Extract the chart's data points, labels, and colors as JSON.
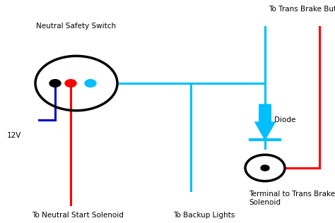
{
  "bg_color": "#ffffff",
  "wire_blue": "#00BFFF",
  "wire_red": "#FF0000",
  "wire_dark_blue": "#0000CC",
  "circle_color": "#000000",
  "text_color": "#000000",
  "labels": {
    "neutral_safety_switch": "Neutral Safety Switch",
    "to_trans_brake_button": "To Trans Brake Button",
    "diode": "Diode",
    "to_neutral_start": "To Neutral Start Solenoid",
    "to_backup_lights": "To Backup Lights",
    "terminal_trans_brake": "Terminal to Trans Brake\nSolenoid",
    "v12": "12V"
  },
  "lw": 2.2
}
